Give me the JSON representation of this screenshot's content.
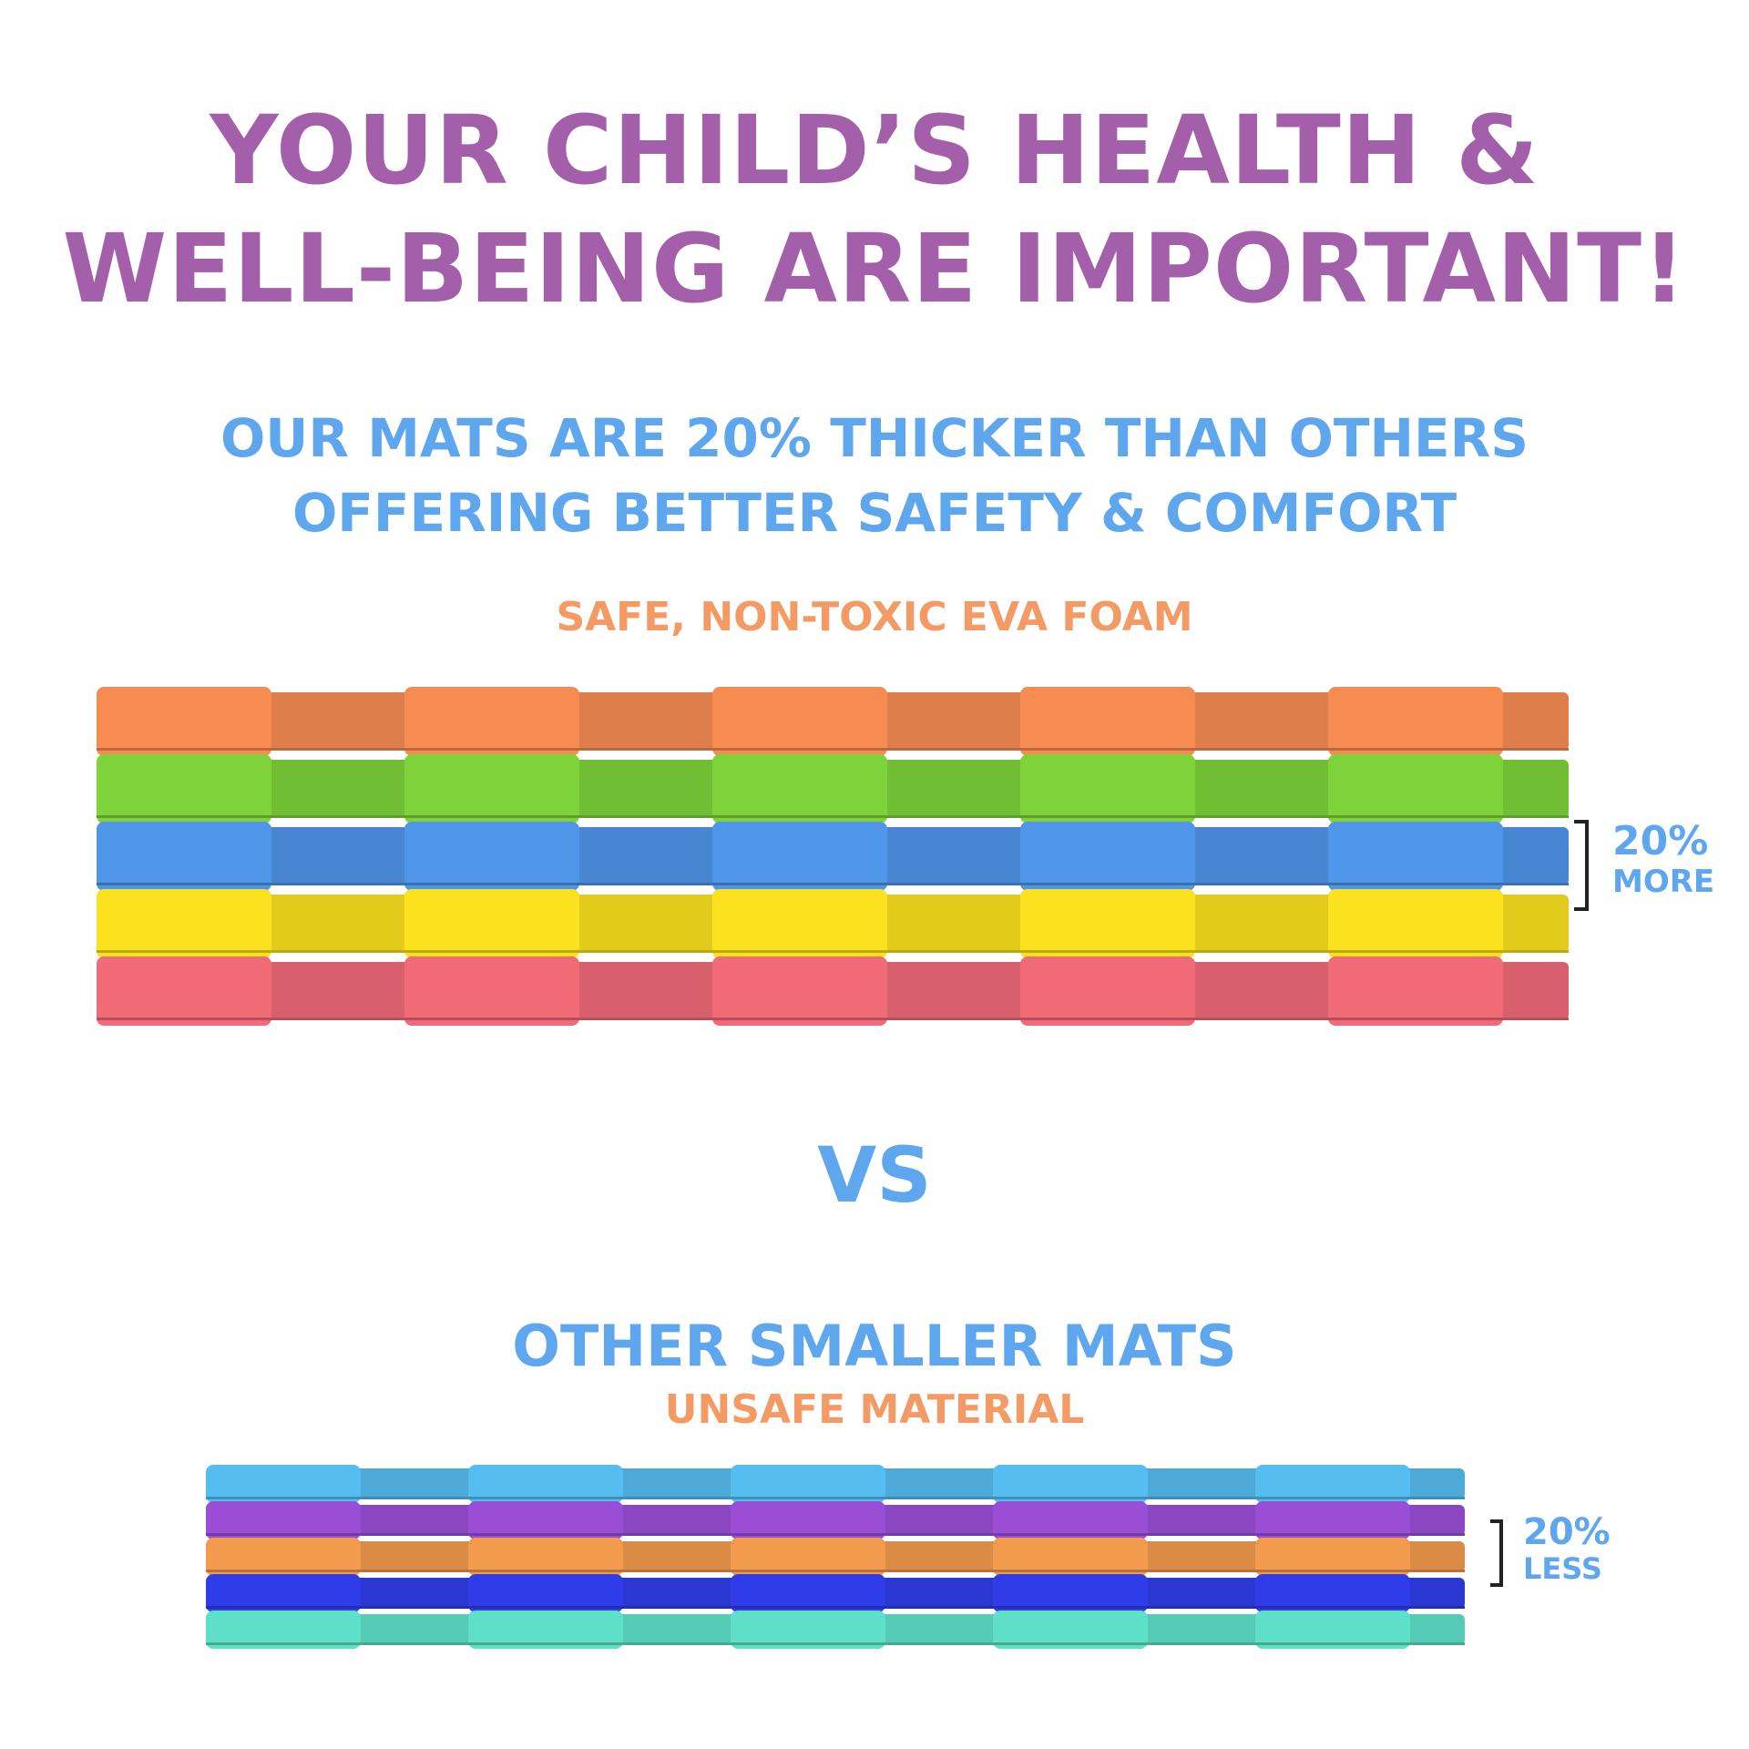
{
  "headline": {
    "line1": "YOUR CHILD’S HEALTH &",
    "line2": "WELL-BEING ARE IMPORTANT!"
  },
  "subheadline": {
    "line1": "OUR MATS ARE 20% THICKER THAN OTHERS",
    "line2": "OFFERING BETTER SAFETY & COMFORT"
  },
  "our_mats": {
    "material_label": "SAFE, NON-TOXIC EVA FOAM",
    "thickness_label": {
      "value": "20%",
      "word": "MORE"
    },
    "layer_colors": [
      "#f78c52",
      "#7ed33a",
      "#4f95e8",
      "#fbe11e",
      "#f06a78"
    ]
  },
  "vs_label": "VS",
  "other_mats": {
    "title": "OTHER SMALLER MATS",
    "material_label": "UNSAFE MATERIAL",
    "thickness_label": {
      "value": "20%",
      "word": "LESS"
    },
    "layer_colors": [
      "#56bdf0",
      "#9a4ed6",
      "#f29a4e",
      "#2f3de8",
      "#5ee0c8"
    ]
  },
  "colors": {
    "headline": "#a45fab",
    "accent_blue": "#5ea6ee",
    "accent_orange": "#f49a64"
  }
}
